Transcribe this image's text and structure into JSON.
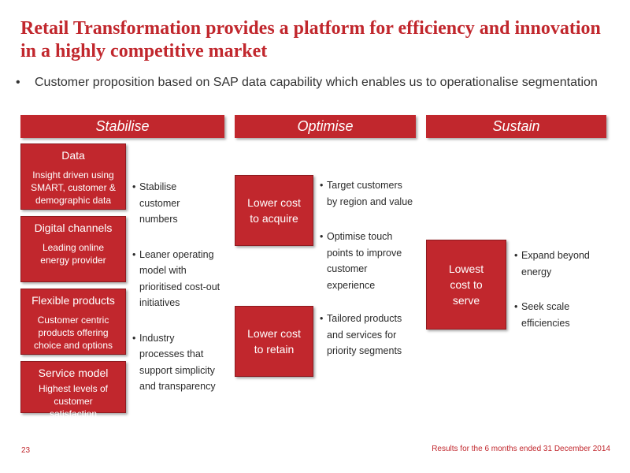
{
  "title": "Retail Transformation provides a platform for efficiency and innovation in a highly competitive market",
  "intro_bullet": "Customer proposition based on SAP data capability which enables us to operationalise segmentation",
  "columns": {
    "stabilise": {
      "header": "Stabilise",
      "boxes": [
        {
          "title": "Data",
          "desc": "Insight driven using SMART, customer & demographic data"
        },
        {
          "title": "Digital channels",
          "desc": "Leading online energy provider"
        },
        {
          "title": "Flexible products",
          "desc": "Customer centric products offering choice and options"
        },
        {
          "title": "Service model",
          "desc": "Highest levels of customer satisfaction"
        }
      ],
      "bullets": [
        "Stabilise customer numbers",
        "Leaner operating model with prioritised cost-out initiatives",
        "Industry processes that support simplicity and transparency"
      ]
    },
    "optimise": {
      "header": "Optimise",
      "boxes": [
        "Lower cost to acquire",
        "Lower cost to retain"
      ],
      "bullets": [
        "Target customers by region and value",
        "Optimise touch points to improve customer experience",
        "Tailored products and services for priority segments"
      ]
    },
    "sustain": {
      "header": "Sustain",
      "box": "Lowest cost to serve",
      "bullets": [
        "Expand beyond energy",
        "Seek scale efficiencies"
      ]
    }
  },
  "footer": {
    "page_number": "23",
    "note": "Results for the 6 months ended 31 December 2014"
  },
  "colors": {
    "accent": "#c1272d"
  }
}
